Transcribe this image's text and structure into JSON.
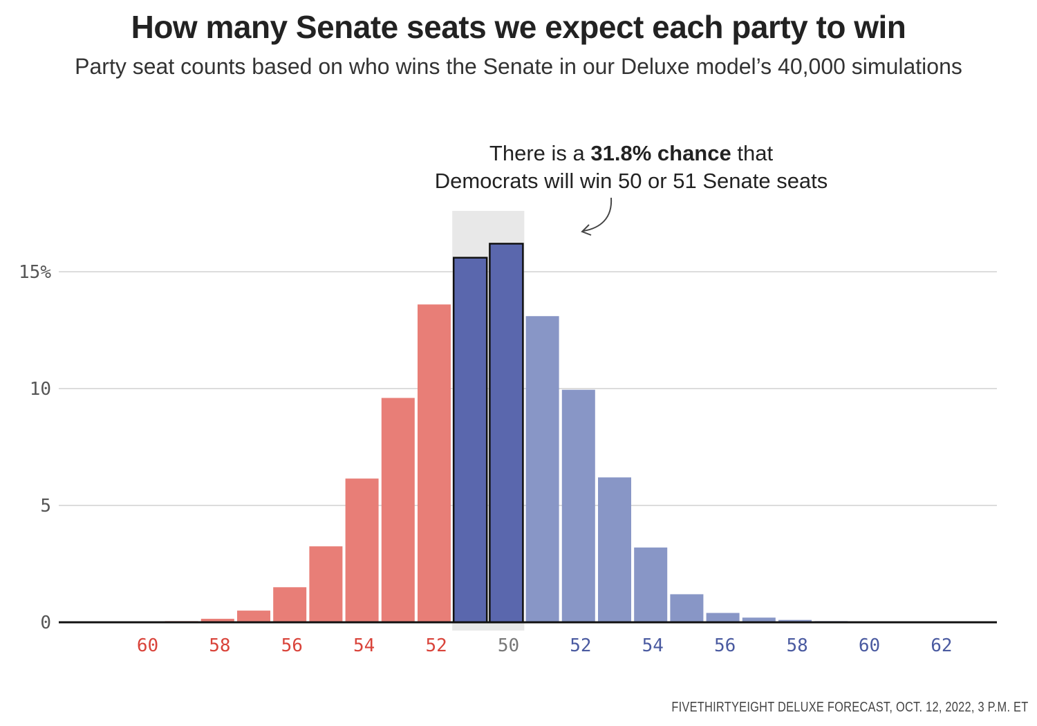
{
  "title": "How many Senate seats we expect each party to win",
  "subtitle": "Party seat counts based on who wins the Senate in our Deluxe model’s 40,000 simulations",
  "source": "FIVETHIRTYEIGHT DELUXE FORECAST, OCT. 12, 2022, 3 P.M. ET",
  "annotation": {
    "before": "There is a ",
    "bold": "31.8% chance",
    "after": " that",
    "line2": "Democrats will win 50 or 51 Senate seats"
  },
  "colors": {
    "republican": "#e87e77",
    "democrat_light": "#8896c6",
    "democrat_highlight": "#5a67ad",
    "highlight_band": "#e8e8e8",
    "republican_label": "#d9433a",
    "democrat_label": "#4a5aa0",
    "neutral_label": "#777777",
    "grid": "#d0d0d0",
    "axis": "#111111"
  },
  "chart_data": {
    "type": "bar",
    "ylabel": "",
    "ylim": [
      0,
      17
    ],
    "yticks": [
      {
        "value": 15,
        "label": "15%"
      },
      {
        "value": 10,
        "label": "10"
      },
      {
        "value": 5,
        "label": "5"
      },
      {
        "value": 0,
        "label": "0"
      }
    ],
    "xtick_labels": [
      {
        "text": "60",
        "party": "R"
      },
      {
        "text": "58",
        "party": "R"
      },
      {
        "text": "56",
        "party": "R"
      },
      {
        "text": "54",
        "party": "R"
      },
      {
        "text": "52",
        "party": "R"
      },
      {
        "text": "50",
        "party": "tie"
      },
      {
        "text": "52",
        "party": "D"
      },
      {
        "text": "54",
        "party": "D"
      },
      {
        "text": "56",
        "party": "D"
      },
      {
        "text": "58",
        "party": "D"
      },
      {
        "text": "60",
        "party": "D"
      },
      {
        "text": "62",
        "party": "D"
      }
    ],
    "bars": [
      {
        "seats": 61,
        "party": "R",
        "value": 0.0
      },
      {
        "seats": 60,
        "party": "R",
        "value": 0.0
      },
      {
        "seats": 59,
        "party": "R",
        "value": 0.0
      },
      {
        "seats": 58,
        "party": "R",
        "value": 0.05
      },
      {
        "seats": 57,
        "party": "R",
        "value": 0.15
      },
      {
        "seats": 56,
        "party": "R",
        "value": 0.5
      },
      {
        "seats": 55,
        "party": "R",
        "value": 1.5
      },
      {
        "seats": 54,
        "party": "R",
        "value": 3.25
      },
      {
        "seats": 53,
        "party": "R",
        "value": 6.15
      },
      {
        "seats": 52,
        "party": "R",
        "value": 9.6
      },
      {
        "seats": 51,
        "party": "R",
        "value": 13.6
      },
      {
        "seats": 50,
        "party": "D",
        "value": 15.6,
        "highlight": true
      },
      {
        "seats": 51,
        "party": "D",
        "value": 16.2,
        "highlight": true
      },
      {
        "seats": 52,
        "party": "D",
        "value": 13.1
      },
      {
        "seats": 53,
        "party": "D",
        "value": 9.95
      },
      {
        "seats": 54,
        "party": "D",
        "value": 6.2
      },
      {
        "seats": 55,
        "party": "D",
        "value": 3.2
      },
      {
        "seats": 56,
        "party": "D",
        "value": 1.2
      },
      {
        "seats": 57,
        "party": "D",
        "value": 0.4
      },
      {
        "seats": 58,
        "party": "D",
        "value": 0.2
      },
      {
        "seats": 59,
        "party": "D",
        "value": 0.1
      },
      {
        "seats": 60,
        "party": "D",
        "value": 0.05
      },
      {
        "seats": 61,
        "party": "D",
        "value": 0.02
      },
      {
        "seats": 62,
        "party": "D",
        "value": 0.01
      },
      {
        "seats": 63,
        "party": "D",
        "value": 0.0
      },
      {
        "seats": 64,
        "party": "D",
        "value": 0.0
      }
    ]
  }
}
